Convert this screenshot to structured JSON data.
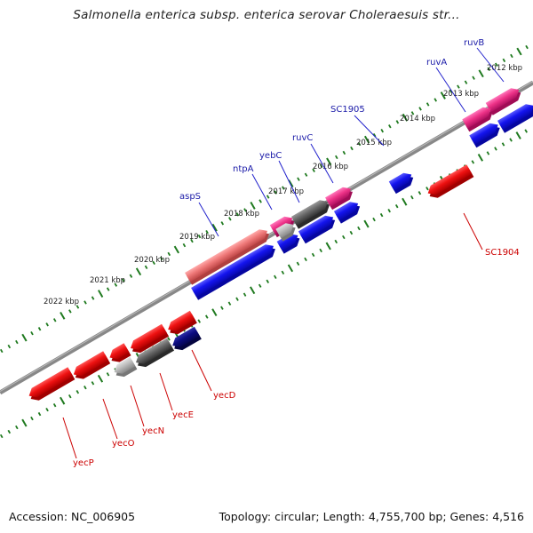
{
  "title": "Salmonella enterica subsp. enterica serovar Choleraesuis str...",
  "footer": {
    "accession": "Accession: NC_006905",
    "topology": "Topology: circular; Length: 4,755,700 bp; Genes: 4,516"
  },
  "ticks": [
    "2012 kbp",
    "2013 kbp",
    "2014 kbp",
    "2015 kbp",
    "2016 kbp",
    "2017 kbp",
    "2018 kbp",
    "2019 kbp",
    "2020 kbp",
    "2021 kbp",
    "2022 kbp"
  ],
  "genes_forward": [
    "ruvB",
    "ruvA",
    "SC1905",
    "ruvC",
    "yebC",
    "ntpA",
    "aspS"
  ],
  "genes_reverse": [
    "SC1904",
    "yecD",
    "yecE",
    "yecN",
    "yecO",
    "yecP"
  ],
  "colors": {
    "backbone": "#888888",
    "tick": "#1f7a1f",
    "forward_label": "#1a1aa8",
    "reverse_label": "#cc0000",
    "blue": "#1414ee",
    "red": "#ee1111",
    "pink": "#ee3388",
    "salmon": "#ee7777",
    "grey": "#666666",
    "lightgrey": "#bbbbbb",
    "navy": "#0c0c80"
  }
}
